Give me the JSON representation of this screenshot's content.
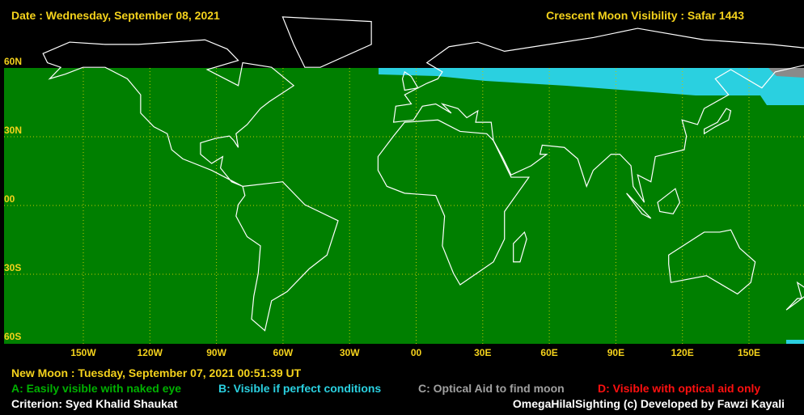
{
  "header": {
    "date": "Date : Wednesday, September 08, 2021",
    "title": "Crescent Moon Visibility : Safar  1443"
  },
  "map": {
    "lat_labels": [
      "60N",
      "30N",
      "00",
      "30S",
      "60S"
    ],
    "lon_labels": [
      "150W",
      "120W",
      "90W",
      "60W",
      "30W",
      "00",
      "30E",
      "60E",
      "90E",
      "120E",
      "150E"
    ]
  },
  "footer": {
    "new_moon": "New Moon : Tuesday, September 07, 2021  00:51:39  UT",
    "legend": [
      "A: Easily visible with naked eye",
      "B: Visible if perfect conditions",
      "C: Optical Aid to find moon",
      "D: Visible with optical aid only"
    ],
    "criterion": "Criterion: Syed Khalid Shaukat",
    "credit": "OmegaHilalSighting  (c)  Developed by Fawzi Kayali"
  }
}
